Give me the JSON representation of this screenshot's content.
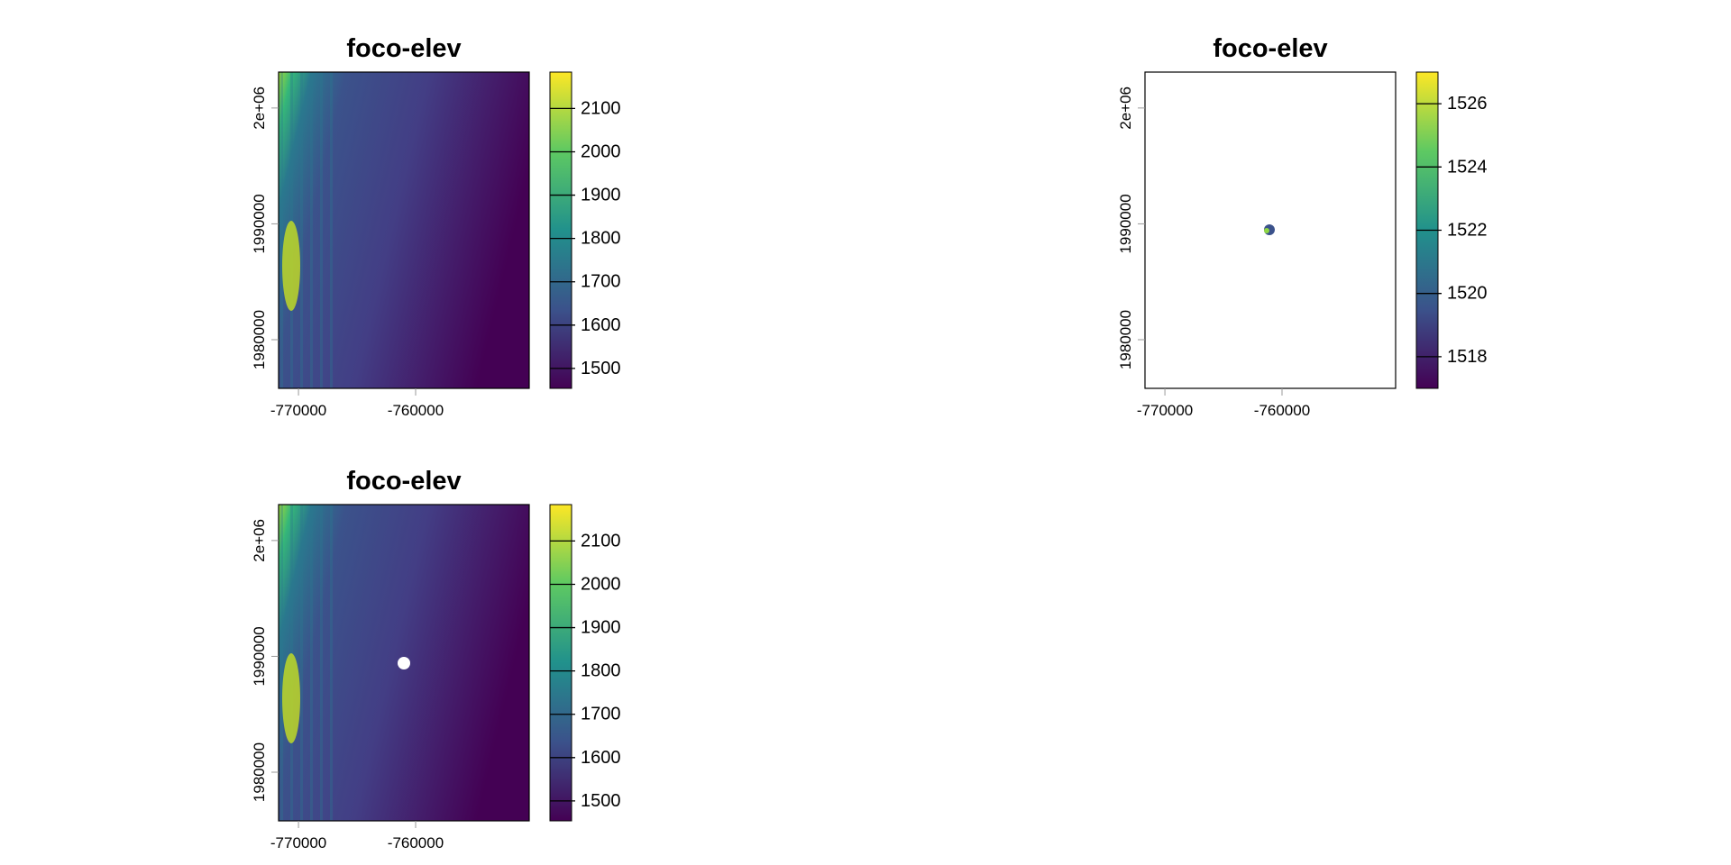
{
  "chart_data": [
    {
      "type": "raster",
      "title": "foco-elev",
      "palette": "viridis",
      "xlim": [
        -771700,
        -750300
      ],
      "xticks": [
        -770000,
        -760000
      ],
      "ylim": [
        1975800,
        2003100
      ],
      "yticks": [
        {
          "value": 2000000,
          "label": "2e+06"
        },
        1990000,
        1980000
      ],
      "zlim": [
        1454,
        2184
      ],
      "zticks": [
        1500,
        1600,
        1700,
        1800,
        1900,
        2000,
        2100
      ]
    },
    {
      "type": "raster",
      "title": "foco-elev",
      "palette": "viridis",
      "xlim": [
        -771700,
        -750300
      ],
      "xticks": [
        -770000,
        -760000
      ],
      "ylim": [
        1975800,
        2003100
      ],
      "yticks": [
        {
          "value": 2000000,
          "label": "2e+06"
        },
        1990000,
        1980000
      ],
      "zlim": [
        1517,
        1527
      ],
      "zticks": [
        1518,
        1520,
        1522,
        1524,
        1526
      ]
    },
    {
      "type": "raster",
      "title": "foco-elev",
      "palette": "viridis",
      "xlim": [
        -771700,
        -750300
      ],
      "xticks": [
        -770000,
        -760000
      ],
      "ylim": [
        1975800,
        2003100
      ],
      "yticks": [
        {
          "value": 2000000,
          "label": "2e+06"
        },
        1990000,
        1980000
      ],
      "zlim": [
        1454,
        2184
      ],
      "zticks": [
        1500,
        1600,
        1700,
        1800,
        1900,
        2000,
        2100
      ]
    }
  ]
}
